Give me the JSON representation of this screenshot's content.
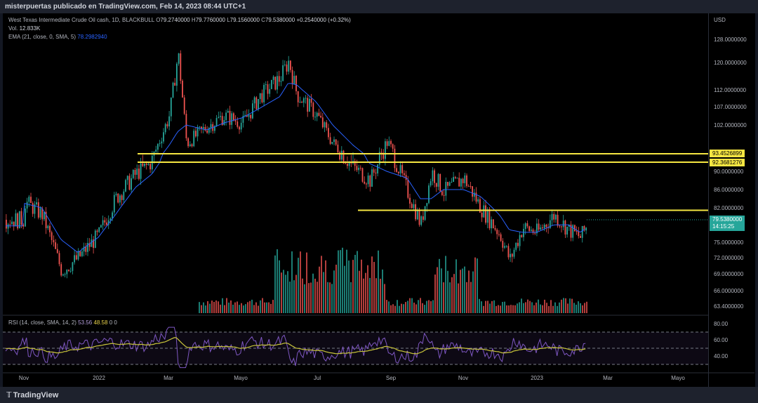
{
  "header": {
    "publish_text": "misterpuertas publicado en TradingView.com, Feb 14, 2023 08:44 UTC+1"
  },
  "legend": {
    "symbol": "West Texas Intermediate Crude Oil cash, 1D, BLACKBULL",
    "open_label": "O",
    "open": "79.2740000",
    "high_label": "H",
    "high": "79.7760000",
    "low_label": "L",
    "low": "79.1560000",
    "close_label": "C",
    "close": "79.5380000",
    "change": "+0.2540000 (+0.32%)",
    "vol_label": "Vol.",
    "vol": "12.833K",
    "ema_label": "EMA (21, close, 0, SMA, 5)",
    "ema": "78.2982940",
    "rsi_label": "RSI (14, close, SMA, 14, 2)",
    "rsi": "53.56",
    "rsi_ma": "48.58",
    "rsi_x1": "0",
    "rsi_x2": "0"
  },
  "axis": {
    "currency": "USD",
    "price_ticks": [
      "128.0000000",
      "120.0000000",
      "112.0000000",
      "107.0000000",
      "102.0000000",
      "90.0000000",
      "86.0000000",
      "82.0000000",
      "75.0000000",
      "72.0000000",
      "69.0000000",
      "66.0000000",
      "63.4000000"
    ],
    "time_ticks": [
      "Nov",
      "2022",
      "Mar",
      "Mayo",
      "Jul",
      "Sep",
      "Nov",
      "2023",
      "Mar",
      "Mayo"
    ],
    "rsi_ticks": [
      "80.00",
      "60.00",
      "40.00"
    ]
  },
  "levels": {
    "l1": "93.4526899",
    "l2": "92.3681276",
    "l3_price": 81.5,
    "current_price": "79.5380000",
    "countdown": "14:15:25"
  },
  "colors": {
    "up": "#26a69a",
    "down": "#ef5350",
    "ema": "#2962ff",
    "level": "#f5e642",
    "rsi": "#7e57c2",
    "rsi_ma": "#c8c43a"
  },
  "footer": {
    "logo_glyph": "𝕋",
    "brand": "TradingView"
  },
  "chart_data": {
    "type": "candlestick",
    "title": "West Texas Intermediate Crude Oil cash, 1D, BLACKBULL",
    "ylabel": "USD",
    "ylim": [
      62.5,
      132
    ],
    "x": [
      "2021-10-31",
      "2021-11-15",
      "2021-12-01",
      "2021-12-15",
      "2022-01-01",
      "2022-01-15",
      "2022-02-01",
      "2022-02-15",
      "2022-03-01",
      "2022-03-08",
      "2022-03-15",
      "2022-04-01",
      "2022-04-15",
      "2022-05-01",
      "2022-05-15",
      "2022-06-01",
      "2022-06-08",
      "2022-06-15",
      "2022-07-01",
      "2022-07-15",
      "2022-08-01",
      "2022-08-15",
      "2022-08-29",
      "2022-09-15",
      "2022-09-26",
      "2022-10-05",
      "2022-10-15",
      "2022-11-01",
      "2022-11-15",
      "2022-12-01",
      "2022-12-09",
      "2022-12-20",
      "2023-01-01",
      "2023-01-15",
      "2023-01-27",
      "2023-02-06",
      "2023-02-14"
    ],
    "close": [
      83.5,
      80.5,
      69.5,
      72.0,
      76.5,
      84.0,
      89.5,
      92.5,
      105.0,
      123.0,
      96.5,
      101.5,
      104.5,
      102.5,
      110.0,
      115.5,
      120.5,
      110.5,
      105.0,
      96.5,
      91.0,
      88.0,
      97.0,
      85.5,
      78.5,
      90.0,
      85.5,
      88.5,
      82.0,
      76.5,
      71.5,
      78.0,
      77.0,
      80.5,
      77.5,
      76.0,
      79.538
    ],
    "ema": [
      83.0,
      82.0,
      75.5,
      73.0,
      76.0,
      80.5,
      86.5,
      89.5,
      96.0,
      100.0,
      102.0,
      100.5,
      102.5,
      104.0,
      106.5,
      110.0,
      114.0,
      113.5,
      108.5,
      102.0,
      96.0,
      92.0,
      90.0,
      88.5,
      84.0,
      84.0,
      86.0,
      86.0,
      84.5,
      80.5,
      77.5,
      77.0,
      77.0,
      78.5,
      78.5,
      77.0,
      78.298
    ],
    "volume": "visible on the chart as bars, not labeled",
    "rsi": {
      "latest": 53.56,
      "ma": 48.58,
      "levels": [
        70,
        50,
        30
      ]
    },
    "horizontal_levels": [
      93.4526899,
      92.3681276,
      81.5
    ],
    "last_price": 79.538
  }
}
